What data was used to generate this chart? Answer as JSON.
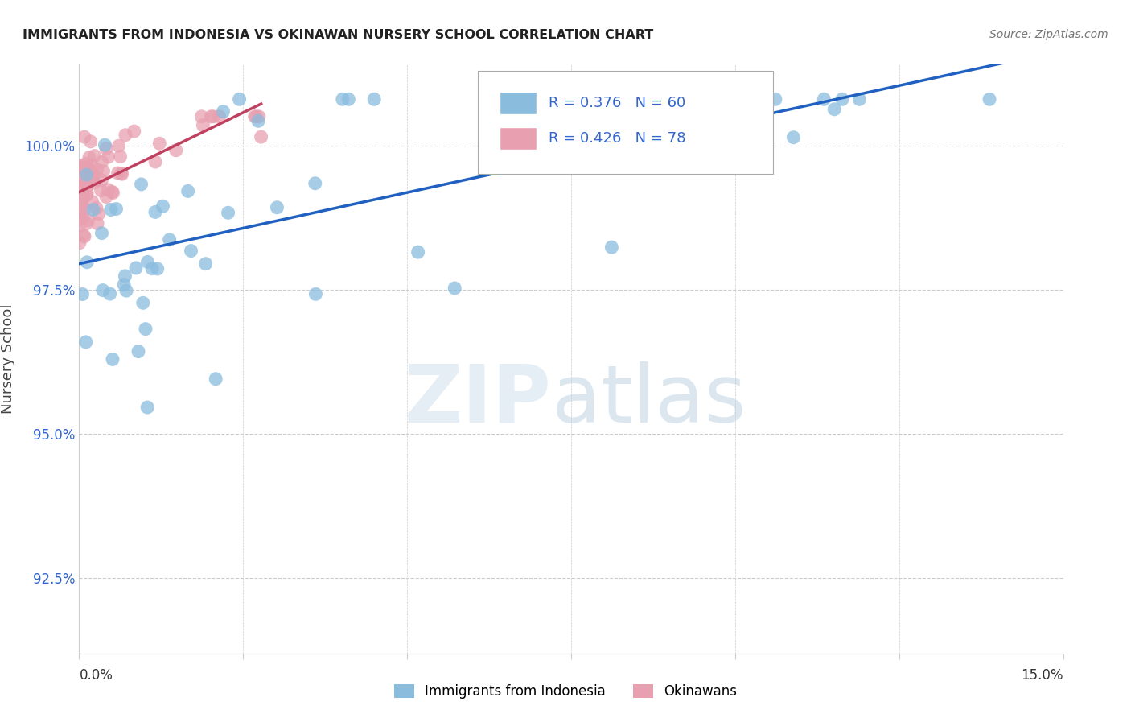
{
  "title": "IMMIGRANTS FROM INDONESIA VS OKINAWAN NURSERY SCHOOL CORRELATION CHART",
  "source": "Source: ZipAtlas.com",
  "ylabel": "Nursery School",
  "xlim": [
    0.0,
    15.0
  ],
  "ylim": [
    91.2,
    101.4
  ],
  "yticks": [
    92.5,
    95.0,
    97.5,
    100.0
  ],
  "legend_blue_r": "R = 0.376",
  "legend_blue_n": "N = 60",
  "legend_pink_r": "R = 0.426",
  "legend_pink_n": "N = 78",
  "blue_dot_color": "#8abcde",
  "blue_line_color": "#2060c0",
  "pink_dot_color": "#e8a0b0",
  "pink_line_color": "#c04060",
  "grid_color": "#cccccc",
  "title_color": "#222222",
  "source_color": "#777777",
  "axis_label_color": "#444444",
  "ytick_color": "#3366cc",
  "legend_text_color": "#3366cc",
  "bottom_legend_label_blue": "Immigrants from Indonesia",
  "bottom_legend_label_pink": "Okinawans"
}
